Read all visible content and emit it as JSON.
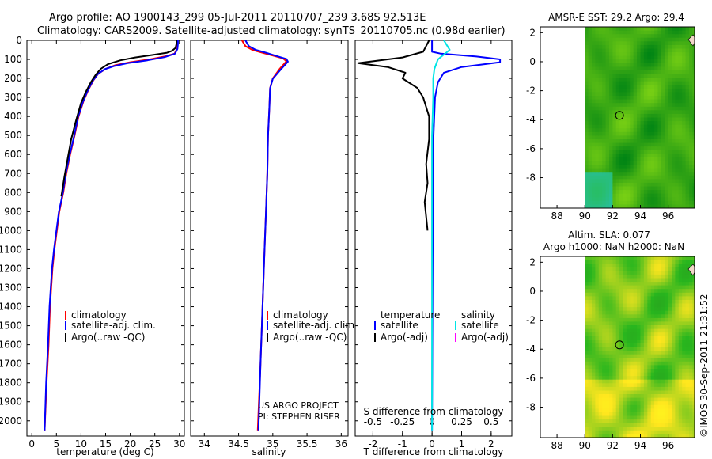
{
  "header": {
    "line1": "Argo profile: AO 1900143_299 05-Jul-2011 20110707_239 3.68S 92.513E",
    "line2": "Climatology: CARS2009. Satellite-adjusted climatology: synTS_20110705.nc (0.98d earlier)"
  },
  "side_stamp": "©IMOS 30-Sep-2011 21:31:52",
  "colors": {
    "climatology": "#ff0000",
    "satellite": "#0000ff",
    "argo": "#000000",
    "satellite_s": "#00e5e5",
    "argo_s": "#ff00ff"
  },
  "chart_data": [
    {
      "id": "temperature",
      "type": "line",
      "xlabel": "temperature (deg C)",
      "ylabel": "",
      "xlim": [
        -1,
        31
      ],
      "ylim": [
        2080,
        0
      ],
      "xticks": [
        0,
        5,
        10,
        15,
        20,
        25,
        30
      ],
      "yticks": [
        0,
        100,
        200,
        300,
        400,
        500,
        600,
        700,
        800,
        900,
        1000,
        1100,
        1200,
        1300,
        1400,
        1500,
        1600,
        1700,
        1800,
        1900,
        2000
      ],
      "legend": [
        "climatology",
        "satellite-adj. clim.",
        "Argo(..raw -QC)"
      ],
      "series": [
        {
          "name": "climatology",
          "color": "red",
          "x": [
            29.6,
            29.6,
            29.5,
            29.0,
            27.0,
            24.0,
            20.0,
            17.0,
            15.0,
            13.5,
            12.5,
            11.5,
            10.5,
            9.5,
            8.7,
            7.8,
            7.0,
            6.4,
            5.6,
            5.1,
            4.6,
            4.2,
            3.7,
            3.4,
            3.0,
            2.6
          ],
          "y": [
            0,
            20,
            45,
            70,
            85,
            100,
            115,
            130,
            150,
            175,
            210,
            260,
            320,
            400,
            500,
            600,
            700,
            800,
            900,
            1000,
            1100,
            1200,
            1400,
            1600,
            1800,
            2050
          ]
        },
        {
          "name": "satellite-adj. clim.",
          "color": "blue",
          "x": [
            29.7,
            29.7,
            29.6,
            29.1,
            27.0,
            23.5,
            19.5,
            16.7,
            14.8,
            13.4,
            12.4,
            11.4,
            10.4,
            9.4,
            8.6,
            7.7,
            6.9,
            6.3,
            5.5,
            5.0,
            4.5,
            4.1,
            3.6,
            3.3,
            2.9,
            2.6
          ],
          "y": [
            0,
            20,
            45,
            70,
            88,
            105,
            120,
            135,
            152,
            178,
            212,
            262,
            322,
            402,
            502,
            602,
            702,
            802,
            902,
            1000,
            1100,
            1200,
            1400,
            1600,
            1800,
            2050
          ]
        },
        {
          "name": "Argo",
          "color": "black",
          "x": [
            29.4,
            29.4,
            29.2,
            28.5,
            27.5,
            25.0,
            21.0,
            18.0,
            15.5,
            14.0,
            13.0,
            12.0,
            11.0,
            10.0,
            9.0,
            8.0,
            7.3,
            6.6,
            6.0
          ],
          "y": [
            0,
            20,
            40,
            55,
            65,
            75,
            90,
            105,
            125,
            150,
            180,
            220,
            270,
            330,
            420,
            520,
            620,
            720,
            820
          ]
        }
      ]
    },
    {
      "id": "salinity",
      "type": "line",
      "xlabel": "salinity",
      "ylabel": "",
      "xlim": [
        33.8,
        36.1
      ],
      "ylim": [
        2080,
        0
      ],
      "xticks": [
        34,
        34.5,
        35,
        35.5,
        36
      ],
      "legend": [
        "climatology",
        "satellite-adj. clim.",
        "Argo(..raw -QC)"
      ],
      "annotations": [
        "US ARGO PROJECT",
        "PI: STEPHEN RISER"
      ],
      "series": [
        {
          "name": "climatology",
          "color": "red",
          "x": [
            34.55,
            34.6,
            34.7,
            34.85,
            35.0,
            35.15,
            35.2,
            35.1,
            35.0,
            34.96,
            34.95,
            34.93,
            34.92,
            34.9,
            34.88,
            34.86,
            34.84,
            34.82,
            34.78
          ],
          "y": [
            0,
            30,
            50,
            65,
            80,
            95,
            110,
            150,
            200,
            250,
            350,
            500,
            700,
            900,
            1100,
            1300,
            1500,
            1700,
            2050
          ]
        },
        {
          "name": "satellite-adj. clim.",
          "color": "blue",
          "x": [
            34.6,
            34.65,
            34.75,
            34.9,
            35.05,
            35.2,
            35.22,
            35.12,
            35.0,
            34.96,
            34.95,
            34.93,
            34.92,
            34.9,
            34.88,
            34.86,
            34.84,
            34.82,
            34.79
          ],
          "y": [
            0,
            30,
            50,
            65,
            82,
            98,
            112,
            152,
            202,
            252,
            352,
            502,
            702,
            902,
            1100,
            1300,
            1500,
            1700,
            2050
          ]
        }
      ]
    },
    {
      "id": "difference",
      "type": "line",
      "xlabel": "T difference from climatology",
      "x2label": "S difference from climatology",
      "xlim": [
        -2.6,
        2.7
      ],
      "x2lim": [
        -0.65,
        0.675
      ],
      "ylim": [
        2080,
        0
      ],
      "xticks": [
        -2,
        -1,
        0,
        1,
        2
      ],
      "x2ticks": [
        -0.5,
        -0.25,
        0,
        0.25,
        0.5
      ],
      "legend": {
        "temperature_title": "temperature",
        "salinity_title": "salinity",
        "satellite": "satellite",
        "argo": "Argo(-adj)"
      },
      "series": [
        {
          "name": "temperature satellite",
          "color": "blue",
          "x": [
            0,
            0,
            0,
            0.3,
            1.5,
            2.3,
            2.3,
            1.0,
            0.4,
            0.2,
            0.1,
            0.05,
            0.03,
            0.02,
            0.01,
            0
          ],
          "y": [
            0,
            50,
            60,
            70,
            85,
            100,
            115,
            140,
            170,
            220,
            300,
            500,
            800,
            1200,
            1600,
            2050
          ]
        },
        {
          "name": "temperature Argo",
          "color": "black",
          "x": [
            -0.1,
            -0.3,
            -1.0,
            -2.5,
            -1.5,
            -0.9,
            -1.0,
            -0.5,
            -0.3,
            -0.1,
            -0.1,
            -0.2,
            -0.15,
            -0.25,
            -0.15
          ],
          "y": [
            0,
            60,
            90,
            120,
            140,
            170,
            200,
            250,
            300,
            400,
            520,
            650,
            750,
            850,
            1000
          ]
        },
        {
          "name": "salinity satellite",
          "color": "cyan",
          "x2": [
            0.1,
            0.15,
            0.05,
            0.02,
            0.01,
            0.01,
            0,
            0,
            0,
            0
          ],
          "y": [
            0,
            50,
            100,
            150,
            200,
            300,
            500,
            900,
            1400,
            2050
          ]
        }
      ]
    },
    {
      "id": "sst_map",
      "type": "heatmap",
      "title": "AMSR-E SST: 29.2 Argo: 29.4",
      "xlim": [
        86.8,
        97.9
      ],
      "ylim": [
        -10.1,
        2.4
      ],
      "xticks": [
        88,
        90,
        92,
        94,
        96
      ],
      "yticks": [
        2,
        0,
        -2,
        -4,
        -6,
        -8
      ],
      "marker": {
        "lon": 92.5,
        "lat": -3.7
      }
    },
    {
      "id": "sla_map",
      "type": "heatmap",
      "title": "Altim. SLA: 0.077",
      "subtitle": "Argo h1000: NaN h2000: NaN",
      "xlim": [
        86.8,
        97.9
      ],
      "ylim": [
        -10.1,
        2.4
      ],
      "xticks": [
        88,
        90,
        92,
        94,
        96
      ],
      "yticks": [
        2,
        0,
        -2,
        -4,
        -6,
        -8
      ],
      "marker": {
        "lon": 92.5,
        "lat": -3.7
      }
    }
  ]
}
